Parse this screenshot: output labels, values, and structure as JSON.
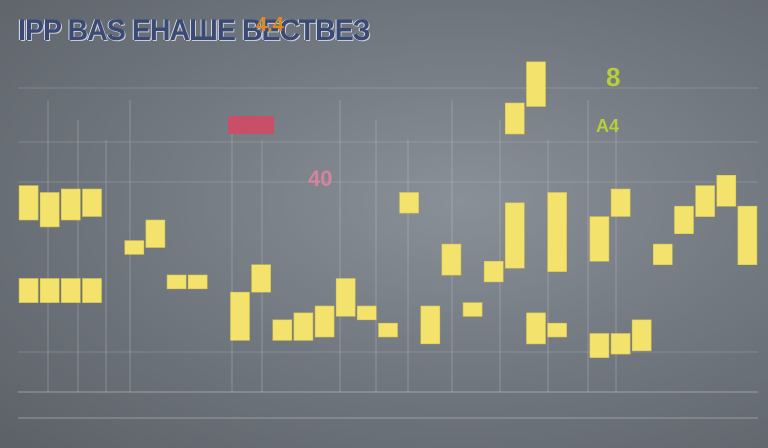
{
  "header": {
    "title": "IPP BAS ЕНАШЕ ВЕСТВЕЗ",
    "accent": "4.4",
    "accent_sub": "",
    "top_right_line1": "",
    "top_right_line2": ""
  },
  "labels": {
    "left_axis_caption": "",
    "center_block_1": "",
    "center_block_2": "",
    "pink_value": "40",
    "green_value": "8",
    "green_value_2": "A4",
    "footer_left": "",
    "footer_right": ""
  },
  "colors": {
    "bar": "#f3e26b",
    "bar_edge": "#d9c64c",
    "grid": "#c8ccd2",
    "background": "#767c83",
    "title": "#3b4a74",
    "accent": "#e08a22",
    "pink": "#c94f68",
    "green": "#b6cf3a"
  },
  "chart_data": {
    "type": "bar",
    "title": "",
    "xlabel": "",
    "ylabel": "",
    "ylim": [
      0,
      100
    ],
    "grid": true,
    "bars": [
      {
        "x": 0,
        "low": 50,
        "high": 60
      },
      {
        "x": 0,
        "low": 26,
        "high": 33
      },
      {
        "x": 1,
        "low": 48,
        "high": 58
      },
      {
        "x": 1,
        "low": 26,
        "high": 33
      },
      {
        "x": 2,
        "low": 50,
        "high": 59
      },
      {
        "x": 2,
        "low": 26,
        "high": 33
      },
      {
        "x": 3,
        "low": 51,
        "high": 59
      },
      {
        "x": 3,
        "low": 26,
        "high": 33
      },
      {
        "x": 5,
        "low": 40,
        "high": 44
      },
      {
        "x": 6,
        "low": 42,
        "high": 50
      },
      {
        "x": 7,
        "low": 30,
        "high": 34
      },
      {
        "x": 8,
        "low": 30,
        "high": 34
      },
      {
        "x": 10,
        "low": 15,
        "high": 29
      },
      {
        "x": 11,
        "low": 29,
        "high": 37
      },
      {
        "x": 12,
        "low": 15,
        "high": 21
      },
      {
        "x": 13,
        "low": 15,
        "high": 23
      },
      {
        "x": 14,
        "low": 16,
        "high": 25
      },
      {
        "x": 15,
        "low": 22,
        "high": 33
      },
      {
        "x": 16,
        "low": 21,
        "high": 25
      },
      {
        "x": 17,
        "low": 16,
        "high": 20
      },
      {
        "x": 18,
        "low": 52,
        "high": 58
      },
      {
        "x": 19,
        "low": 14,
        "high": 25
      },
      {
        "x": 20,
        "low": 34,
        "high": 43
      },
      {
        "x": 21,
        "low": 22,
        "high": 26
      },
      {
        "x": 22,
        "low": 32,
        "high": 38
      },
      {
        "x": 23,
        "low": 36,
        "high": 55
      },
      {
        "x": 23,
        "low": 75,
        "high": 84
      },
      {
        "x": 24,
        "low": 14,
        "high": 23
      },
      {
        "x": 24,
        "low": 83,
        "high": 96
      },
      {
        "x": 25,
        "low": 35,
        "high": 58
      },
      {
        "x": 25,
        "low": 16,
        "high": 20
      },
      {
        "x": 27,
        "low": 38,
        "high": 51
      },
      {
        "x": 27,
        "low": 10,
        "high": 17
      },
      {
        "x": 28,
        "low": 51,
        "high": 59
      },
      {
        "x": 28,
        "low": 11,
        "high": 17
      },
      {
        "x": 29,
        "low": 12,
        "high": 21
      },
      {
        "x": 30,
        "low": 37,
        "high": 43
      },
      {
        "x": 31,
        "low": 46,
        "high": 54
      },
      {
        "x": 32,
        "low": 51,
        "high": 60
      },
      {
        "x": 33,
        "low": 54,
        "high": 63
      },
      {
        "x": 34,
        "low": 37,
        "high": 54
      }
    ]
  }
}
